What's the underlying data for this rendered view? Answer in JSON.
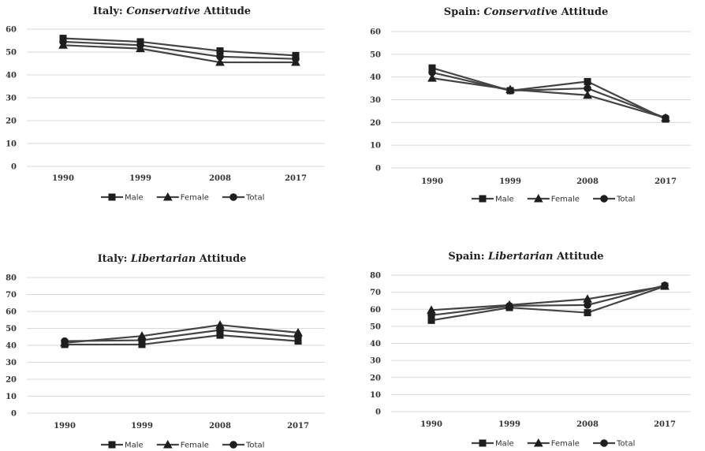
{
  "chart_data": [
    {
      "type": "line",
      "title_plain": "Italy: ",
      "title_italic": "Conservative",
      "title_rest": " Attitude",
      "categories": [
        "1990",
        "1999",
        "2008",
        "2017"
      ],
      "ylim": [
        0,
        60
      ],
      "yticks": [
        0,
        10,
        20,
        30,
        40,
        50,
        60
      ],
      "grid": true,
      "legend_position": "bottom",
      "series": [
        {
          "name": "Male",
          "marker": "square",
          "values": [
            56,
            54.5,
            50.5,
            48.5
          ]
        },
        {
          "name": "Female",
          "marker": "triangle",
          "values": [
            53,
            51.5,
            45.5,
            45.5
          ]
        },
        {
          "name": "Total",
          "marker": "circle",
          "values": [
            54.5,
            53,
            48,
            47
          ]
        }
      ]
    },
    {
      "type": "line",
      "title_plain": "Spain: ",
      "title_italic": "Conservativ",
      "title_rest": "e Attitude",
      "categories": [
        "1990",
        "1999",
        "2008",
        "2017"
      ],
      "ylim": [
        0,
        60
      ],
      "yticks": [
        0,
        10,
        20,
        30,
        40,
        50,
        60
      ],
      "grid": true,
      "legend_position": "bottom",
      "series": [
        {
          "name": "Male",
          "marker": "square",
          "values": [
            44,
            34,
            38,
            21.5
          ]
        },
        {
          "name": "Female",
          "marker": "triangle",
          "values": [
            39.5,
            34.5,
            32,
            22
          ]
        },
        {
          "name": "Total",
          "marker": "circle",
          "values": [
            42,
            34,
            35,
            22
          ]
        }
      ]
    },
    {
      "type": "line",
      "title_plain": "Italy: ",
      "title_italic": "Libertarian",
      "title_rest": " Attitude",
      "categories": [
        "1990",
        "1999",
        "2008",
        "2017"
      ],
      "ylim": [
        0,
        80
      ],
      "yticks": [
        0,
        10,
        20,
        30,
        40,
        50,
        60,
        70,
        80
      ],
      "grid": true,
      "legend_position": "bottom",
      "series": [
        {
          "name": "Male",
          "marker": "square",
          "values": [
            40.5,
            40.5,
            46,
            42.5
          ]
        },
        {
          "name": "Female",
          "marker": "triangle",
          "values": [
            41.5,
            45.5,
            52,
            47.5
          ]
        },
        {
          "name": "Total",
          "marker": "circle",
          "values": [
            42.5,
            43,
            49,
            45
          ]
        }
      ]
    },
    {
      "type": "line",
      "title_plain": "Spain: ",
      "title_italic": "Libertarian",
      "title_rest": " Attitude",
      "categories": [
        "1990",
        "1999",
        "2008",
        "2017"
      ],
      "ylim": [
        0,
        80
      ],
      "yticks": [
        0,
        10,
        20,
        30,
        40,
        50,
        60,
        70,
        80
      ],
      "grid": true,
      "legend_position": "bottom",
      "series": [
        {
          "name": "Male",
          "marker": "square",
          "values": [
            53.5,
            61,
            58,
            73.5
          ]
        },
        {
          "name": "Female",
          "marker": "triangle",
          "values": [
            59.5,
            62.5,
            66,
            73.5
          ]
        },
        {
          "name": "Total",
          "marker": "circle",
          "values": [
            56.5,
            62,
            62.5,
            74
          ]
        }
      ]
    }
  ]
}
